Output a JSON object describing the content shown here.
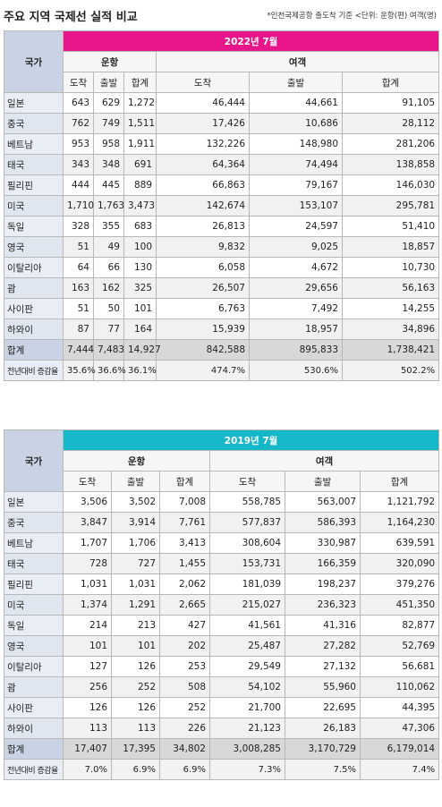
{
  "title": "주요 지역 국제선 실적 비교",
  "note": "*인천국제공항 출도착 기준 <단위: 운항(편) 여객(명)",
  "headers": {
    "country": "국가",
    "flights": "운항",
    "passengers": "여객",
    "arrival": "도착",
    "departure": "출발",
    "sum": "합계"
  },
  "tables": [
    {
      "month": "2022년 7월",
      "rows": [
        {
          "label": "일본",
          "fa": "643",
          "fd": "629",
          "ft": "1,272",
          "pa": "46,444",
          "pd": "44,661",
          "pt": "91,105"
        },
        {
          "label": "중국",
          "fa": "762",
          "fd": "749",
          "ft": "1,511",
          "pa": "17,426",
          "pd": "10,686",
          "pt": "28,112"
        },
        {
          "label": "베트남",
          "fa": "953",
          "fd": "958",
          "ft": "1,911",
          "pa": "132,226",
          "pd": "148,980",
          "pt": "281,206"
        },
        {
          "label": "태국",
          "fa": "343",
          "fd": "348",
          "ft": "691",
          "pa": "64,364",
          "pd": "74,494",
          "pt": "138,858"
        },
        {
          "label": "필리핀",
          "fa": "444",
          "fd": "445",
          "ft": "889",
          "pa": "66,863",
          "pd": "79,167",
          "pt": "146,030"
        },
        {
          "label": "미국",
          "fa": "1,710",
          "fd": "1,763",
          "ft": "3,473",
          "pa": "142,674",
          "pd": "153,107",
          "pt": "295,781"
        },
        {
          "label": "독일",
          "fa": "328",
          "fd": "355",
          "ft": "683",
          "pa": "26,813",
          "pd": "24,597",
          "pt": "51,410"
        },
        {
          "label": "영국",
          "fa": "51",
          "fd": "49",
          "ft": "100",
          "pa": "9,832",
          "pd": "9,025",
          "pt": "18,857"
        },
        {
          "label": "이탈리아",
          "fa": "64",
          "fd": "66",
          "ft": "130",
          "pa": "6,058",
          "pd": "4,672",
          "pt": "10,730"
        },
        {
          "label": "괌",
          "fa": "163",
          "fd": "162",
          "ft": "325",
          "pa": "26,507",
          "pd": "29,656",
          "pt": "56,163"
        },
        {
          "label": "사이판",
          "fa": "51",
          "fd": "50",
          "ft": "101",
          "pa": "6,763",
          "pd": "7,492",
          "pt": "14,255"
        },
        {
          "label": "하와이",
          "fa": "87",
          "fd": "77",
          "ft": "164",
          "pa": "15,939",
          "pd": "18,957",
          "pt": "34,896"
        }
      ],
      "total": {
        "label": "합계",
        "fa": "7,444",
        "fd": "7,483",
        "ft": "14,927",
        "pa": "842,588",
        "pd": "895,833",
        "pt": "1,738,421"
      },
      "yoy": {
        "label": "전년대비 증감율",
        "fa": "35.6%",
        "fd": "36.6%",
        "ft": "36.1%",
        "pa": "474.7%",
        "pd": "530.6%",
        "pt": "502.2%"
      }
    },
    {
      "month": "2019년 7월",
      "rows": [
        {
          "label": "일본",
          "fa": "3,506",
          "fd": "3,502",
          "ft": "7,008",
          "pa": "558,785",
          "pd": "563,007",
          "pt": "1,121,792"
        },
        {
          "label": "중국",
          "fa": "3,847",
          "fd": "3,914",
          "ft": "7,761",
          "pa": "577,837",
          "pd": "586,393",
          "pt": "1,164,230"
        },
        {
          "label": "베트남",
          "fa": "1,707",
          "fd": "1,706",
          "ft": "3,413",
          "pa": "308,604",
          "pd": "330,987",
          "pt": "639,591"
        },
        {
          "label": "태국",
          "fa": "728",
          "fd": "727",
          "ft": "1,455",
          "pa": "153,731",
          "pd": "166,359",
          "pt": "320,090"
        },
        {
          "label": "필리핀",
          "fa": "1,031",
          "fd": "1,031",
          "ft": "2,062",
          "pa": "181,039",
          "pd": "198,237",
          "pt": "379,276"
        },
        {
          "label": "미국",
          "fa": "1,374",
          "fd": "1,291",
          "ft": "2,665",
          "pa": "215,027",
          "pd": "236,323",
          "pt": "451,350"
        },
        {
          "label": "독일",
          "fa": "214",
          "fd": "213",
          "ft": "427",
          "pa": "41,561",
          "pd": "41,316",
          "pt": "82,877"
        },
        {
          "label": "영국",
          "fa": "101",
          "fd": "101",
          "ft": "202",
          "pa": "25,487",
          "pd": "27,282",
          "pt": "52,769"
        },
        {
          "label": "이탈리아",
          "fa": "127",
          "fd": "126",
          "ft": "253",
          "pa": "29,549",
          "pd": "27,132",
          "pt": "56,681"
        },
        {
          "label": "괌",
          "fa": "256",
          "fd": "252",
          "ft": "508",
          "pa": "54,102",
          "pd": "55,960",
          "pt": "110,062"
        },
        {
          "label": "사이판",
          "fa": "126",
          "fd": "126",
          "ft": "252",
          "pa": "21,700",
          "pd": "22,695",
          "pt": "44,395"
        },
        {
          "label": "하와이",
          "fa": "113",
          "fd": "113",
          "ft": "226",
          "pa": "21,123",
          "pd": "26,183",
          "pt": "47,306"
        }
      ],
      "total": {
        "label": "합계",
        "fa": "17,407",
        "fd": "17,395",
        "ft": "34,802",
        "pa": "3,008,285",
        "pd": "3,170,729",
        "pt": "6,179,014"
      },
      "yoy": {
        "label": "전년대비 증감율",
        "fa": "7.0%",
        "fd": "6.9%",
        "ft": "6.9%",
        "pa": "7.3%",
        "pd": "7.5%",
        "pt": "7.4%"
      }
    }
  ]
}
